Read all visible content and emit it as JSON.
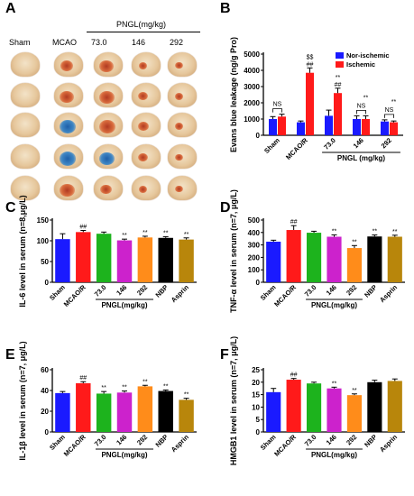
{
  "panels": {
    "A": {
      "letter": "A",
      "header_sham": "Sham",
      "header_mcao": "MCAO",
      "header_pngl": "PNGL(mg/kg)",
      "doses": [
        "73.0",
        "146",
        "292"
      ]
    },
    "B": "B",
    "C": "C",
    "D": "D",
    "E": "E",
    "F": "F"
  },
  "colors": {
    "blue": "#1a1aff",
    "red": "#ff1a1a",
    "green": "#1db31d",
    "magenta": "#cc22cc",
    "orange": "#ff8c1a",
    "black": "#000000",
    "brown": "#b8860b"
  },
  "chart_data": [
    {
      "id": "B",
      "type": "bar",
      "ylabel": "Evans blue leakage (ng/g Pro)",
      "ylim": [
        0,
        5000
      ],
      "yticks": [
        0,
        1000,
        2000,
        3000,
        4000,
        5000
      ],
      "categories": [
        "Sham",
        "MCAO/R",
        "73.0",
        "146",
        "292"
      ],
      "group_label": "PNGL (mg/kg)",
      "legend": [
        "Nor-ischemic",
        "Ischemic"
      ],
      "series": [
        {
          "name": "Nor-ischemic",
          "values": [
            1000,
            800,
            1200,
            1000,
            850
          ],
          "err": [
            150,
            80,
            350,
            200,
            100
          ]
        },
        {
          "name": "Ischemic",
          "values": [
            1150,
            3850,
            2600,
            1000,
            800
          ],
          "err": [
            150,
            300,
            300,
            200,
            80
          ]
        }
      ],
      "annotations": {
        "ns": "NS",
        "dd": "$$",
        "hh": "##",
        "star": "**"
      }
    },
    {
      "id": "C",
      "type": "bar",
      "ylabel": "IL-6 level in serum (n=8,μg/L)",
      "ylim": [
        0,
        150
      ],
      "yticks": [
        0,
        50,
        100,
        150
      ],
      "categories": [
        "Sham",
        "MCAO/R",
        "73.0",
        "146",
        "292",
        "NBP",
        "Asprin"
      ],
      "values": [
        104,
        121,
        117,
        101,
        108,
        107,
        103
      ],
      "err": [
        13,
        4,
        4,
        3,
        3,
        3,
        4
      ],
      "marks": [
        "",
        "##",
        "",
        "**",
        "**",
        "**",
        "**"
      ],
      "group_label": "PNGL(mg/kg)"
    },
    {
      "id": "D",
      "type": "bar",
      "ylabel": "TNF-α level in serum (n=7, μg/L)",
      "ylim": [
        0,
        500
      ],
      "yticks": [
        0,
        100,
        200,
        300,
        400,
        500
      ],
      "categories": [
        "Sham",
        "MCAO/R",
        "73.0",
        "146",
        "292",
        "NBP",
        "Asprin"
      ],
      "values": [
        326,
        420,
        398,
        366,
        275,
        368,
        366
      ],
      "err": [
        12,
        35,
        12,
        15,
        20,
        12,
        12
      ],
      "marks": [
        "",
        "##",
        "",
        "**",
        "**",
        "**",
        "**"
      ],
      "group_label": "PNGL(mg/kg)"
    },
    {
      "id": "E",
      "type": "bar",
      "ylabel": "IL-1β level in serum (n=7, μg/L)",
      "ylim": [
        0,
        60
      ],
      "yticks": [
        0,
        20,
        40,
        60
      ],
      "categories": [
        "Sham",
        "MCAO/R",
        "73.0",
        "146",
        "292",
        "NBP",
        "Asprin"
      ],
      "values": [
        37.5,
        47,
        37,
        38,
        44,
        39.5,
        31
      ],
      "err": [
        1.5,
        1.5,
        2,
        1.5,
        1,
        1,
        1.5
      ],
      "marks": [
        "",
        "##",
        "**",
        "**",
        "**",
        "**",
        "**"
      ],
      "group_label": "PNGL(mg/kg)"
    },
    {
      "id": "F",
      "type": "bar",
      "ylabel": "HMGB1 level in serum (n=7, μg/L)",
      "ylim": [
        0,
        25
      ],
      "yticks": [
        0,
        5,
        10,
        15,
        20,
        25
      ],
      "categories": [
        "Sham",
        "MCAO/R",
        "73.0",
        "146",
        "292",
        "NBP",
        "Asprin"
      ],
      "values": [
        16,
        21,
        19.5,
        17.5,
        14.8,
        20,
        20.5
      ],
      "err": [
        1.5,
        0.5,
        0.5,
        0.5,
        0.5,
        0.8,
        0.8
      ],
      "marks": [
        "",
        "##",
        "",
        "**",
        "**",
        "",
        ""
      ],
      "group_label": "PNGL(mg/kg)"
    }
  ]
}
